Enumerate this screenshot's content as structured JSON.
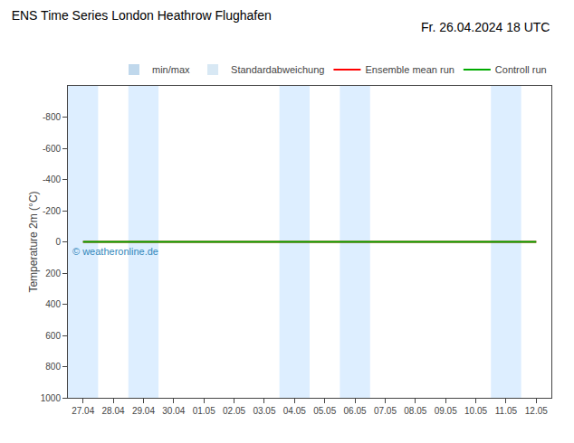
{
  "chart_data": {
    "type": "line",
    "title": "ENS Time Series London Heathrow Flughafen",
    "subtitle": "Fr. 26.04.2024 18 UTC",
    "y_label": "Temperature 2m (°C)",
    "categories": [
      "27.04",
      "28.04",
      "29.04",
      "30.04",
      "01.05",
      "02.05",
      "03.05",
      "04.05",
      "05.05",
      "06.05",
      "07.05",
      "08.05",
      "09.05",
      "10.05",
      "11.05",
      "12.05"
    ],
    "series": [
      {
        "name": "min/max",
        "type": "bar",
        "color": "#c0d8ec",
        "values": [
          null,
          null,
          null,
          null,
          null,
          null,
          null,
          null,
          null,
          null,
          null,
          null,
          null,
          null,
          null,
          null
        ]
      },
      {
        "name": "Standardabweichung",
        "type": "bar",
        "color": "#d8e8f4",
        "values": [
          null,
          null,
          null,
          null,
          null,
          null,
          null,
          null,
          null,
          null,
          null,
          null,
          null,
          null,
          null,
          null
        ]
      },
      {
        "name": "Ensemble mean run",
        "type": "line",
        "color": "#ff0000",
        "values": [
          0,
          0,
          0,
          0,
          0,
          0,
          0,
          0,
          0,
          0,
          0,
          0,
          0,
          0,
          0,
          0
        ]
      },
      {
        "name": "Controll run",
        "type": "line",
        "color": "#00aa00",
        "values": [
          0,
          0,
          0,
          0,
          0,
          0,
          0,
          0,
          0,
          0,
          0,
          0,
          0,
          0,
          0,
          0
        ]
      }
    ],
    "ylim": [
      1000,
      -1000
    ],
    "yticks": [
      -800,
      -600,
      -400,
      -200,
      0,
      200,
      400,
      600,
      800,
      1000
    ],
    "grid": false,
    "legend": "upper right",
    "bands": {
      "color": "#ddeeff",
      "ranges": [
        [
          "27.04",
          "28.04"
        ],
        [
          "29.04",
          "30.04"
        ],
        [
          "04.05",
          "05.05"
        ],
        [
          "06.05",
          "07.05"
        ],
        [
          "11.05",
          "12.05"
        ]
      ]
    },
    "annotations": [
      {
        "text": "© weatheronline.de",
        "color": "#3388bb"
      }
    ]
  }
}
